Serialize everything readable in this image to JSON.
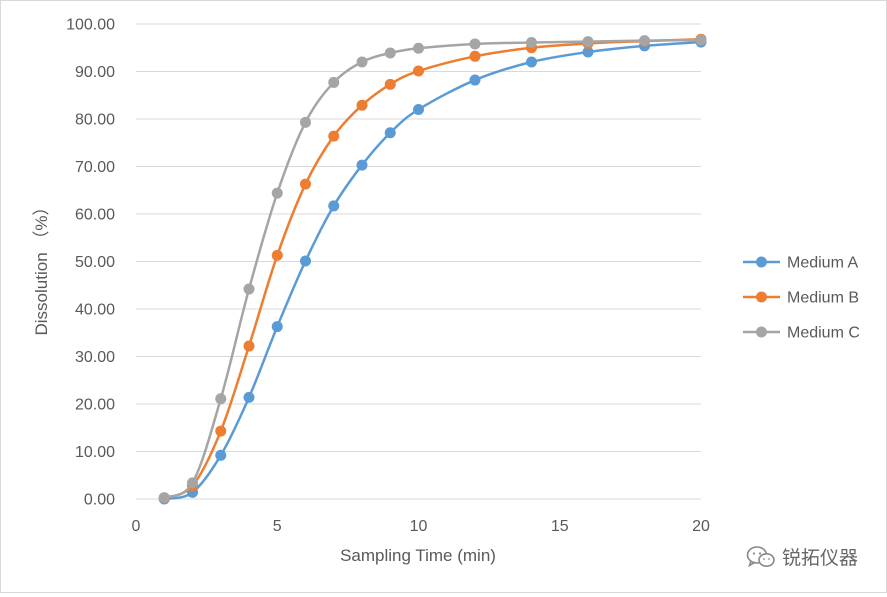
{
  "chart_data": {
    "type": "line",
    "title": "",
    "xlabel": "Sampling Time (min)",
    "ylabel": "Dissolution （%）",
    "xlim": [
      0,
      20
    ],
    "ylim": [
      0,
      100
    ],
    "x_ticks": [
      "0",
      "5",
      "10",
      "15",
      "20"
    ],
    "y_ticks": [
      "0.00",
      "10.00",
      "20.00",
      "30.00",
      "40.00",
      "50.00",
      "60.00",
      "70.00",
      "80.00",
      "90.00",
      "100.00"
    ],
    "grid": "horizontal",
    "legend_position": "right",
    "x": [
      1,
      2,
      3,
      4,
      5,
      6,
      7,
      8,
      9,
      10,
      12,
      14,
      16,
      18,
      20
    ],
    "series": [
      {
        "name": "Medium A",
        "color": "#5b9bd5",
        "values": [
          0.0,
          1.4,
          9.2,
          21.4,
          36.3,
          50.1,
          61.7,
          70.3,
          77.1,
          82.0,
          88.2,
          92.0,
          94.1,
          95.4,
          96.2
        ]
      },
      {
        "name": "Medium B",
        "color": "#ed7d31",
        "values": [
          0.2,
          2.8,
          14.3,
          32.2,
          51.3,
          66.3,
          76.4,
          82.9,
          87.3,
          90.1,
          93.2,
          95.0,
          95.9,
          96.4,
          96.8
        ]
      },
      {
        "name": "Medium C",
        "color": "#a5a5a5",
        "values": [
          0.3,
          3.4,
          21.1,
          44.2,
          64.4,
          79.3,
          87.7,
          92.0,
          93.9,
          94.9,
          95.8,
          96.1,
          96.3,
          96.5,
          96.6
        ]
      }
    ]
  },
  "watermark": {
    "icon": "wechat-icon",
    "text": "锐拓仪器"
  }
}
